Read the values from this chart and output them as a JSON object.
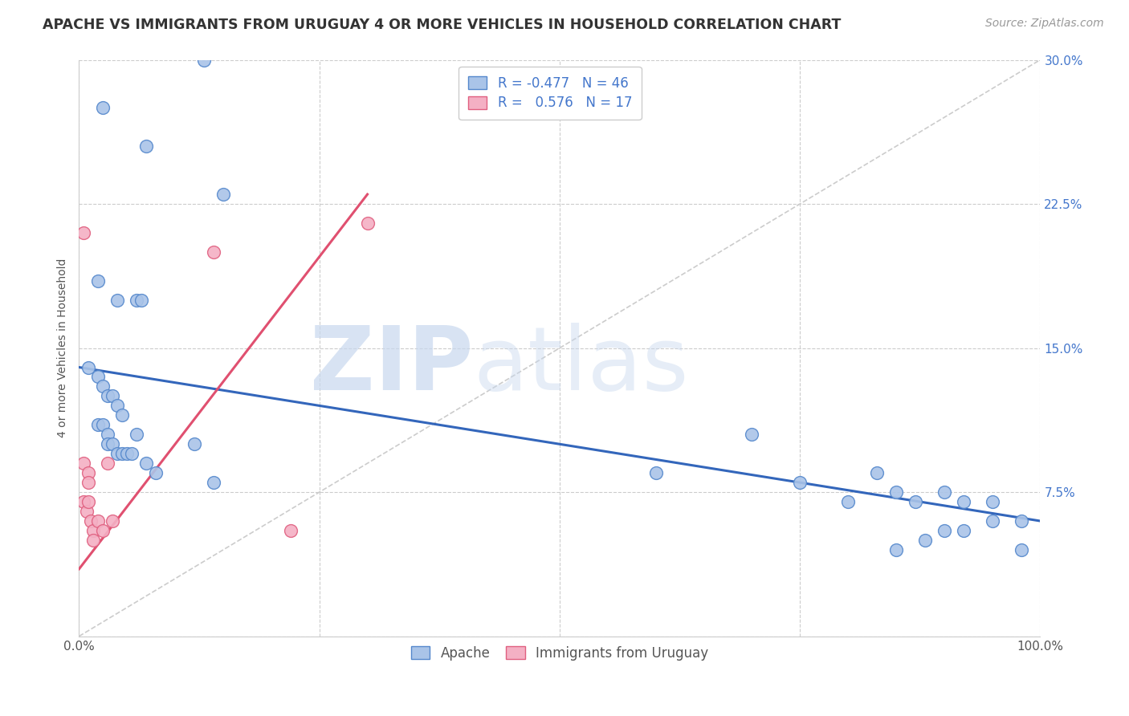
{
  "title": "APACHE VS IMMIGRANTS FROM URUGUAY 4 OR MORE VEHICLES IN HOUSEHOLD CORRELATION CHART",
  "source": "Source: ZipAtlas.com",
  "ylabel": "4 or more Vehicles in Household",
  "xlim": [
    0,
    100
  ],
  "ylim": [
    0,
    30
  ],
  "xticks": [
    0,
    25,
    50,
    75,
    100
  ],
  "xticklabels": [
    "0.0%",
    "",
    "",
    "",
    "100.0%"
  ],
  "yticks": [
    0,
    7.5,
    15,
    22.5,
    30
  ],
  "yticklabels": [
    "",
    "7.5%",
    "15.0%",
    "22.5%",
    "30.0%"
  ],
  "apache_color": "#aac4e8",
  "apache_edge_color": "#5588cc",
  "uruguay_color": "#f4b0c4",
  "uruguay_edge_color": "#e06080",
  "blue_line_color": "#3366bb",
  "pink_line_color": "#e05070",
  "diag_line_color": "#cccccc",
  "legend_R_apache": "-0.477",
  "legend_N_apache": "46",
  "legend_R_uruguay": "0.576",
  "legend_N_uruguay": "17",
  "watermark_zip": "ZIP",
  "watermark_atlas": "atlas",
  "apache_x": [
    2.5,
    7,
    13,
    15,
    2,
    4,
    6,
    6.5,
    1,
    2,
    2.5,
    3,
    3.5,
    4,
    4.5,
    2,
    2.5,
    3,
    3,
    3.5,
    4,
    4.5,
    5,
    5.5,
    6,
    7,
    8,
    12,
    14,
    60,
    70,
    75,
    80,
    83,
    85,
    87,
    90,
    92,
    95,
    98,
    85,
    88,
    90,
    92,
    95,
    98
  ],
  "apache_y": [
    27.5,
    25.5,
    30,
    23,
    18.5,
    17.5,
    17.5,
    17.5,
    14,
    13.5,
    13,
    12.5,
    12.5,
    12,
    11.5,
    11,
    11,
    10.5,
    10,
    10,
    9.5,
    9.5,
    9.5,
    9.5,
    10.5,
    9,
    8.5,
    10,
    8,
    8.5,
    10.5,
    8,
    7,
    8.5,
    7.5,
    7,
    7.5,
    7,
    7,
    6,
    4.5,
    5,
    5.5,
    5.5,
    6,
    4.5
  ],
  "uruguay_x": [
    0.5,
    0.5,
    0.5,
    0.8,
    1,
    1,
    1,
    1.2,
    1.5,
    1.5,
    2,
    2.5,
    3,
    3.5,
    14,
    22,
    30
  ],
  "uruguay_y": [
    21,
    9,
    7,
    6.5,
    8.5,
    8,
    7,
    6,
    5.5,
    5,
    6,
    5.5,
    9,
    6,
    20,
    5.5,
    21.5
  ],
  "blue_trendline_x": [
    0,
    100
  ],
  "blue_trendline_y": [
    14.0,
    6.0
  ],
  "pink_trendline_x": [
    0,
    30
  ],
  "pink_trendline_y": [
    3.5,
    23.0
  ],
  "diag_line_x": [
    0,
    100
  ],
  "diag_line_y": [
    0,
    30
  ]
}
